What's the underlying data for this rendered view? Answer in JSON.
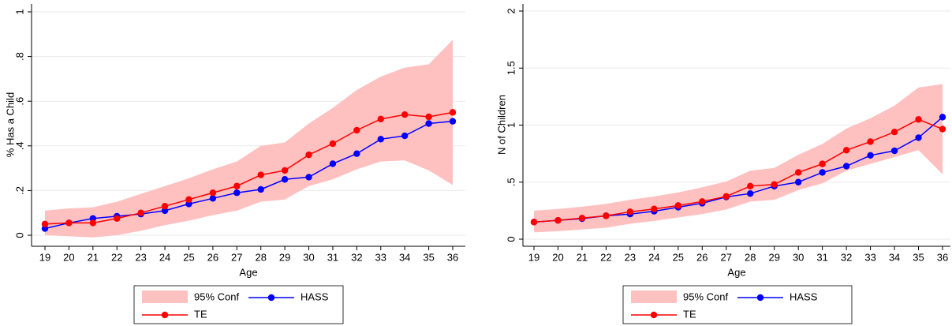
{
  "chart_data": [
    {
      "type": "line",
      "xlabel": "Age",
      "ylabel": "% Has a Child",
      "x": [
        19,
        20,
        21,
        22,
        23,
        24,
        25,
        26,
        27,
        28,
        29,
        30,
        31,
        32,
        33,
        34,
        35,
        36
      ],
      "xlim": [
        19,
        36
      ],
      "xticks": [
        19,
        20,
        21,
        22,
        23,
        24,
        25,
        26,
        27,
        28,
        29,
        30,
        31,
        32,
        33,
        34,
        35,
        36
      ],
      "ylim": [
        0,
        1
      ],
      "yticks": [
        0,
        {
          "value": 0.2,
          "label": ".2"
        },
        {
          "value": 0.4,
          "label": ".4"
        },
        {
          "value": 0.6,
          "label": ".6"
        },
        {
          "value": 0.8,
          "label": ".8"
        },
        1
      ],
      "grid": true,
      "band": {
        "name": "95% Conf",
        "color": "#ffc0c0",
        "lower": [
          0.0,
          -0.005,
          -0.01,
          0.0,
          0.02,
          0.045,
          0.065,
          0.09,
          0.11,
          0.15,
          0.16,
          0.22,
          0.25,
          0.295,
          0.33,
          0.335,
          0.29,
          0.225
        ],
        "upper": [
          0.11,
          0.12,
          0.125,
          0.15,
          0.185,
          0.22,
          0.255,
          0.295,
          0.33,
          0.4,
          0.415,
          0.5,
          0.57,
          0.65,
          0.71,
          0.75,
          0.765,
          0.875
        ]
      },
      "series": [
        {
          "name": "HASS",
          "color": "#0000ff",
          "values": [
            0.03,
            0.055,
            0.075,
            0.085,
            0.095,
            0.11,
            0.14,
            0.165,
            0.19,
            0.205,
            0.25,
            0.26,
            0.32,
            0.365,
            0.43,
            0.445,
            0.5,
            0.51
          ]
        },
        {
          "name": "TE",
          "color": "#ff0000",
          "values": [
            0.05,
            0.055,
            0.055,
            0.075,
            0.1,
            0.13,
            0.16,
            0.19,
            0.22,
            0.27,
            0.29,
            0.36,
            0.41,
            0.47,
            0.52,
            0.54,
            0.53,
            0.55
          ]
        }
      ]
    },
    {
      "type": "line",
      "xlabel": "Age",
      "ylabel": "N of Children",
      "x": [
        19,
        20,
        21,
        22,
        23,
        24,
        25,
        26,
        27,
        28,
        29,
        30,
        31,
        32,
        33,
        34,
        35,
        36
      ],
      "xlim": [
        19,
        36
      ],
      "xticks": [
        19,
        20,
        21,
        22,
        23,
        24,
        25,
        26,
        27,
        28,
        29,
        30,
        31,
        32,
        33,
        34,
        35,
        36
      ],
      "ylim": [
        0,
        2
      ],
      "yticks": [
        0,
        {
          "value": 0.5,
          "label": ".5"
        },
        1,
        1.5,
        2
      ],
      "grid": true,
      "band": {
        "name": "95% Conf",
        "color": "#ffc0c0",
        "lower": [
          0.06,
          0.07,
          0.085,
          0.1,
          0.135,
          0.16,
          0.19,
          0.22,
          0.26,
          0.33,
          0.345,
          0.43,
          0.49,
          0.6,
          0.66,
          0.72,
          0.78,
          0.57
        ],
        "upper": [
          0.25,
          0.265,
          0.285,
          0.31,
          0.345,
          0.375,
          0.41,
          0.455,
          0.505,
          0.6,
          0.625,
          0.74,
          0.835,
          0.97,
          1.06,
          1.17,
          1.33,
          1.36
        ]
      },
      "series": [
        {
          "name": "HASS",
          "color": "#0000ff",
          "values": [
            0.15,
            0.165,
            0.18,
            0.205,
            0.22,
            0.245,
            0.28,
            0.315,
            0.37,
            0.4,
            0.465,
            0.5,
            0.585,
            0.64,
            0.735,
            0.775,
            0.89,
            1.07
          ]
        },
        {
          "name": "TE",
          "color": "#ff0000",
          "values": [
            0.15,
            0.165,
            0.185,
            0.205,
            0.24,
            0.265,
            0.295,
            0.33,
            0.375,
            0.465,
            0.48,
            0.585,
            0.66,
            0.78,
            0.855,
            0.94,
            1.05,
            0.965
          ]
        }
      ]
    }
  ]
}
